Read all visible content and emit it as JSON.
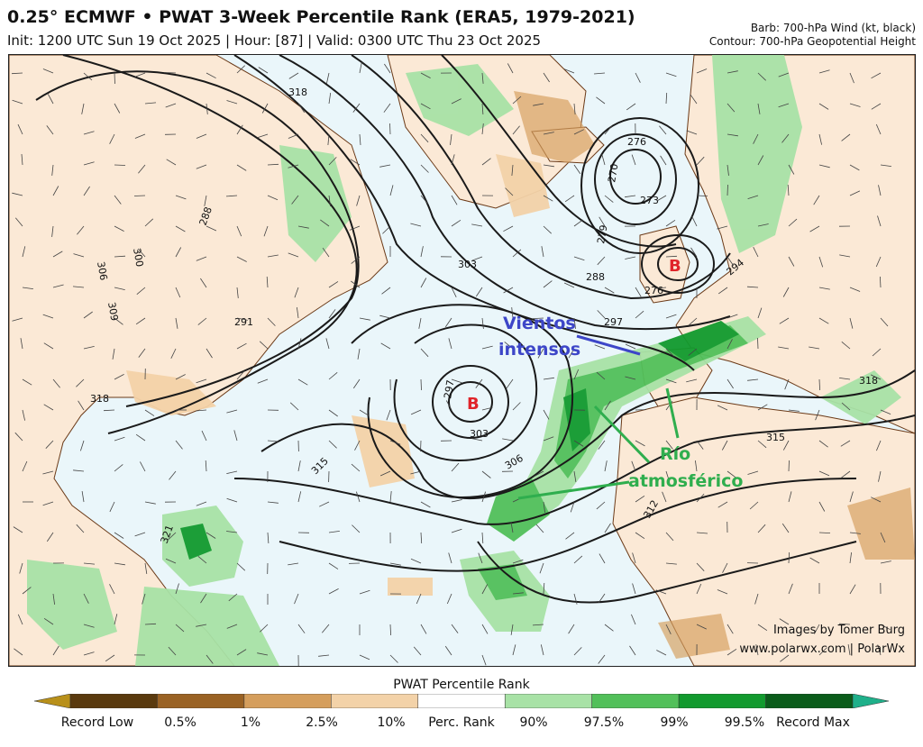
{
  "header": {
    "title": "0.25° ECMWF • PWAT 3-Week Percentile Rank (ERA5, 1979-2021)",
    "subtitle": "Init: 1200 UTC Sun 19 Oct 2025 | Hour: [87] | Valid: 0300 UTC Thu 23 Oct 2025",
    "legend_barb": "Barb: 700-hPa Wind (kt, black)",
    "legend_contour": "Contour: 700-hPa Geopotential Height"
  },
  "annotations": {
    "low_atlantic": "B",
    "low_europe": "B",
    "winds_line1": "Vientos",
    "winds_line2": "intensos",
    "river_line1": "Río",
    "river_line2": "atmosférico",
    "colors": {
      "low": "#e0242a",
      "winds": "#3d46c8",
      "river": "#2fae4e"
    }
  },
  "contour_labels": [
    "288",
    "291",
    "300",
    "306",
    "309",
    "303",
    "297",
    "276",
    "273",
    "270",
    "279",
    "288",
    "276",
    "294",
    "297",
    "303",
    "306",
    "315",
    "318",
    "318",
    "312",
    "321",
    "315",
    "318"
  ],
  "credit": {
    "line1": "Images by Tomer Burg",
    "line2": "www.polarwx.com | PolarWx"
  },
  "colorbar": {
    "title": "PWAT Percentile Rank",
    "labels": [
      "Record Low",
      "0.5%",
      "1%",
      "2.5%",
      "10%",
      "Perc. Rank",
      "90%",
      "97.5%",
      "99%",
      "99.5%",
      "Record Max"
    ],
    "colors": [
      "#b8901a",
      "#5a3a0e",
      "#9a6224",
      "#d59e5c",
      "#f3d2a8",
      "#ffffff",
      "#a8e2a6",
      "#52c05a",
      "#129a2e",
      "#0a5c1a",
      "#1fb08a"
    ]
  }
}
